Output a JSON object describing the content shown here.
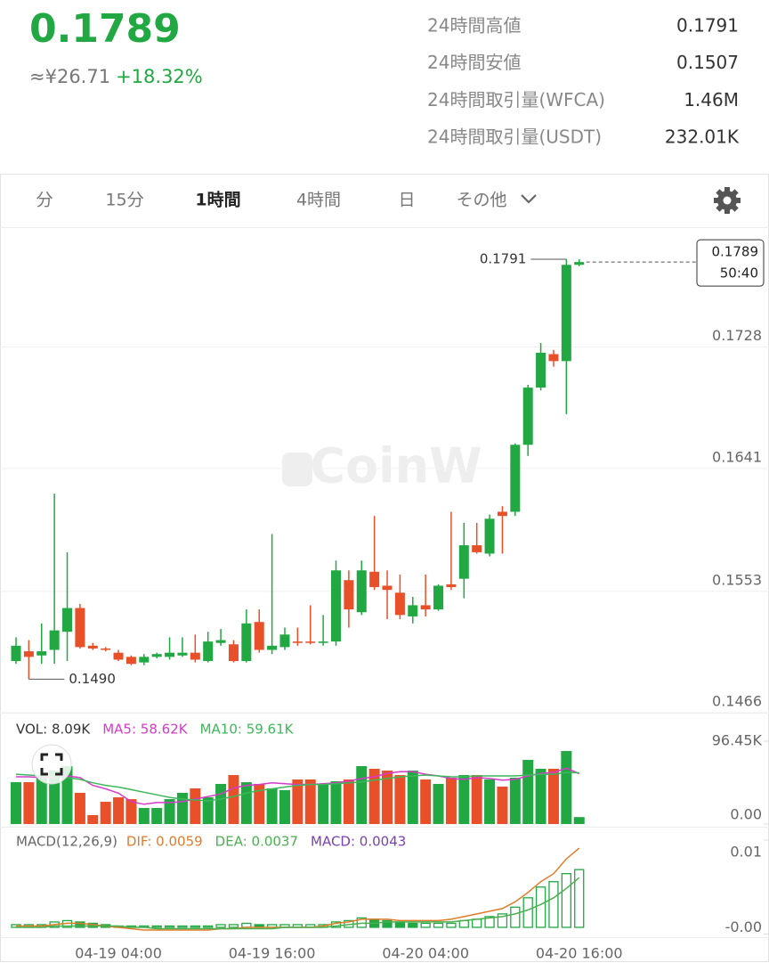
{
  "header": {
    "price": "0.1789",
    "fiat": "≈¥26.71",
    "change": "+18.32%"
  },
  "stats": [
    {
      "label": "24時間高値",
      "value": "0.1791"
    },
    {
      "label": "24時間安値",
      "value": "0.1507"
    },
    {
      "label": "24時間取引量(WFCA)",
      "value": "1.46M"
    },
    {
      "label": "24時間取引量(USDT)",
      "value": "232.01K"
    }
  ],
  "tabs": [
    "分",
    "15分",
    "1時間",
    "4時間",
    "日",
    "その他"
  ],
  "active_tab": 2,
  "watermark": "CoinW",
  "chart_data": [
    {
      "type": "candlestick",
      "categories": [
        null,
        null,
        null,
        null,
        null,
        null,
        null,
        null,
        "04-19 04:00",
        null,
        null,
        null,
        null,
        null,
        null,
        null,
        null,
        null,
        null,
        null,
        "04-19 16:00",
        null,
        null,
        null,
        null,
        null,
        null,
        null,
        null,
        null,
        null,
        null,
        "04-20 04:00",
        null,
        null,
        null,
        null,
        null,
        null,
        null,
        null,
        null,
        null,
        null,
        "04-20 16:00"
      ],
      "open": [
        0.1503,
        0.151,
        0.1507,
        0.1511,
        0.1524,
        0.1541,
        0.1514,
        0.1512,
        0.1509,
        0.1506,
        0.1502,
        0.1506,
        0.1506,
        0.1507,
        0.1509,
        0.1503,
        0.1516,
        0.1515,
        0.1503,
        0.1531,
        0.1511,
        0.1513,
        0.1517,
        0.1517,
        0.1516,
        0.1517,
        0.1561,
        0.1538,
        0.1567,
        0.1557,
        0.1552,
        0.1535,
        0.1543,
        0.154,
        0.1558,
        0.1562,
        0.1586,
        0.158,
        0.161,
        0.161,
        0.1658,
        0.1699,
        0.1723,
        0.1718,
        0.1787
      ],
      "high": [
        0.152,
        0.1518,
        0.153,
        0.1623,
        0.1581,
        0.1544,
        0.1516,
        0.1513,
        0.1511,
        0.1507,
        0.1508,
        0.1509,
        0.152,
        0.152,
        0.1522,
        0.1524,
        0.1526,
        0.1518,
        0.154,
        0.154,
        0.1594,
        0.1527,
        0.1527,
        0.1543,
        0.1536,
        0.1575,
        0.1568,
        0.1575,
        0.1607,
        0.1568,
        0.1565,
        0.1549,
        0.1565,
        0.1558,
        0.161,
        0.1602,
        0.1602,
        0.1608,
        0.1614,
        0.1659,
        0.1701,
        0.1731,
        0.1726,
        0.1791,
        0.1791
      ],
      "low": [
        0.1501,
        0.149,
        0.1501,
        0.1501,
        0.1503,
        0.1512,
        0.1511,
        0.151,
        0.1503,
        0.15,
        0.15,
        0.1505,
        0.1504,
        0.1506,
        0.1502,
        0.1502,
        0.1514,
        0.1502,
        0.1502,
        0.1509,
        0.1508,
        0.1511,
        0.1514,
        0.1515,
        0.1514,
        0.1514,
        0.1527,
        0.1536,
        0.1554,
        0.1533,
        0.1533,
        0.153,
        0.1535,
        0.1539,
        0.1554,
        0.1548,
        0.158,
        0.1578,
        0.158,
        0.1607,
        0.165,
        0.1697,
        0.1714,
        0.168,
        0.1786
      ],
      "close": [
        0.1514,
        0.1506,
        0.151,
        0.1525,
        0.1541,
        0.1513,
        0.1512,
        0.1511,
        0.1504,
        0.1501,
        0.1506,
        0.1508,
        0.1509,
        0.1509,
        0.1504,
        0.1517,
        0.1518,
        0.1503,
        0.153,
        0.1511,
        0.1514,
        0.1522,
        0.1516,
        0.1516,
        0.1517,
        0.1568,
        0.154,
        0.1568,
        0.1556,
        0.1554,
        0.1536,
        0.1543,
        0.154,
        0.1557,
        0.1556,
        0.1586,
        0.1581,
        0.1605,
        0.1607,
        0.1658,
        0.1699,
        0.1724,
        0.1718,
        0.1787,
        0.1789
      ],
      "up_color": "#21a843",
      "down_color": "#e8502a",
      "ylim": [
        0.1466,
        0.1814
      ],
      "yticks": [
        0.1466,
        0.1553,
        0.1641,
        0.1728
      ],
      "grid": true,
      "extremes": [
        0.1791,
        {
          "value": 0.149,
          "label": "0.1490"
        }
      ],
      "last_price": 0.1789,
      "countdown": "50:40"
    },
    {
      "type": "volume",
      "series": [
        {
          "name": "VOL: 8.09K",
          "color": "#333333",
          "values": [
            48700,
            48700,
            57000,
            62200,
            67400,
            36300,
            10400,
            25900,
            31100,
            29000,
            18700,
            18700,
            29000,
            36300,
            41500,
            31100,
            46700,
            57000,
            48700,
            46700,
            41500,
            39400,
            51900,
            51900,
            46700,
            49800,
            51900,
            67400,
            64300,
            62200,
            57000,
            62200,
            51900,
            46700,
            53900,
            57000,
            57000,
            51900,
            43600,
            53900,
            74700,
            64300,
            64300,
            85000,
            8090
          ]
        },
        {
          "name": "MA5: 58.62K",
          "color": "#d63ac8",
          "values": [
            55000,
            55000,
            54000,
            54000,
            56000,
            54000,
            45000,
            41000,
            36000,
            26000,
            23000,
            25000,
            25000,
            26000,
            29000,
            32000,
            35000,
            42000,
            45000,
            46000,
            48000,
            47000,
            46000,
            46000,
            47000,
            48000,
            50000,
            53000,
            55000,
            59000,
            61000,
            61000,
            58000,
            56000,
            53000,
            52000,
            54000,
            53000,
            51000,
            52000,
            56000,
            59000,
            60000,
            65000,
            58620
          ]
        },
        {
          "name": "MA10: 59.61K",
          "color": "#3cb85a",
          "values": [
            58000,
            57000,
            56000,
            55000,
            54000,
            52000,
            48000,
            45000,
            43000,
            40000,
            37000,
            34000,
            31000,
            29000,
            28000,
            27000,
            29000,
            32000,
            36000,
            39000,
            41000,
            43000,
            45000,
            46000,
            46000,
            47000,
            48000,
            49000,
            51000,
            53000,
            55000,
            56000,
            57000,
            56000,
            55000,
            55000,
            56000,
            56000,
            56000,
            56000,
            57000,
            58000,
            58000,
            60000,
            59610
          ]
        }
      ],
      "ylim": [
        0,
        96450
      ],
      "yticks": [
        {
          "value": 96450,
          "label": "96.45K"
        },
        {
          "value": 0,
          "label": "0.00"
        }
      ]
    },
    {
      "type": "macd",
      "title": "MACD(12,26,9)",
      "series": [
        {
          "name": "DIF: 0.0059",
          "color": "#e07b2a",
          "values": [
            0.0001,
            0.0001,
            0.0001,
            0.0002,
            0.0003,
            0.0003,
            0.0002,
            0.0001,
            0,
            -0.0001,
            -0.0002,
            -0.0002,
            -0.0002,
            -0.0002,
            -0.0002,
            -0.0002,
            -0.0001,
            -0.0001,
            0,
            0,
            0,
            0,
            0,
            0,
            0.0001,
            0.0003,
            0.0004,
            0.0006,
            0.0006,
            0.0006,
            0.0005,
            0.0005,
            0.0005,
            0.0005,
            0.0006,
            0.0008,
            0.001,
            0.0012,
            0.0014,
            0.0019,
            0.0026,
            0.0034,
            0.004,
            0.0051,
            0.0059
          ]
        },
        {
          "name": "DEA: 0.0037",
          "color": "#4caf50",
          "values": [
            0,
            0,
            0,
            0.0001,
            0.0001,
            0.0001,
            0.0001,
            0.0001,
            0.0001,
            0,
            0,
            -0.0001,
            -0.0001,
            -0.0001,
            -0.0001,
            -0.0001,
            -0.0001,
            -0.0001,
            -0.0001,
            -0.0001,
            -0.0001,
            0,
            0,
            0,
            0,
            0.0001,
            0.0002,
            0.0003,
            0.0003,
            0.0004,
            0.0004,
            0.0004,
            0.0004,
            0.0004,
            0.0004,
            0.0005,
            0.0006,
            0.0007,
            0.0008,
            0.001,
            0.0013,
            0.0017,
            0.0022,
            0.0029,
            0.0037
          ]
        },
        {
          "name": "MACD: 0.0043",
          "color": "#7b3fb5",
          "values": [
            0.0002,
            0.0002,
            0.0002,
            0.0004,
            0.0005,
            0.0004,
            0.0003,
            0.0002,
            0.0001,
            0.0001,
            0.0001,
            0.0001,
            0.0001,
            0.0001,
            0.0001,
            0.0001,
            0.0002,
            0.0002,
            0.0003,
            0.0002,
            0.0002,
            0.0002,
            0.0002,
            0.0002,
            0.0002,
            0.0004,
            0.0005,
            0.0007,
            0.0006,
            0.0005,
            0.0004,
            0.0003,
            0.0003,
            0.0003,
            0.0003,
            0.0005,
            0.0006,
            0.0008,
            0.001,
            0.0015,
            0.0022,
            0.003,
            0.0034,
            0.004,
            0.0043
          ]
        }
      ],
      "bar_color": "#21a843",
      "ylim": [
        -0.0006,
        0.0067
      ],
      "yticks": [
        {
          "value": 0.0065,
          "label": "0.01"
        },
        {
          "value": -0.0005,
          "label": "-0.00"
        }
      ]
    }
  ]
}
